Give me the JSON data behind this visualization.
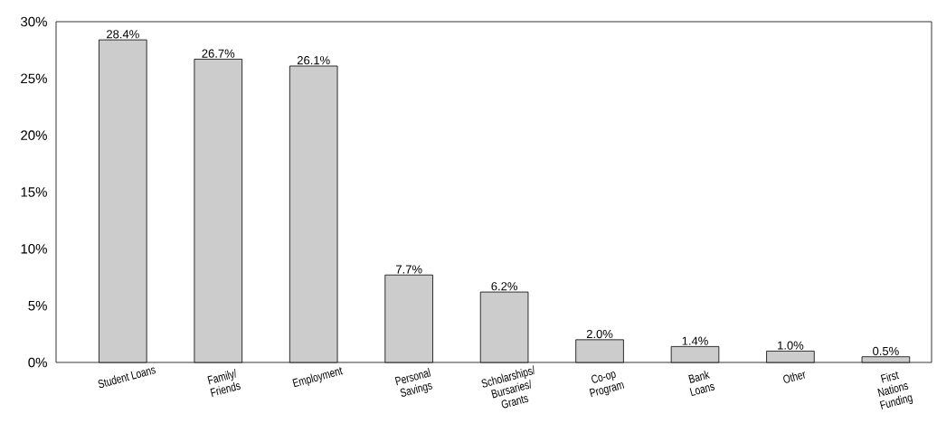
{
  "chart_data": {
    "type": "bar",
    "categories": [
      "Student Loans",
      "Family/\nFriends",
      "Employment",
      "Personal\nSavings",
      "Scholarships/\nBursaries/\nGrants",
      "Co-op\nProgram",
      "Bank\nLoans",
      "Other",
      "First\nNations\nFunding"
    ],
    "values": [
      28.4,
      26.7,
      26.1,
      7.7,
      6.2,
      2.0,
      1.4,
      1.0,
      0.5
    ],
    "value_labels": [
      "28.4%",
      "26.7%",
      "26.1%",
      "7.7%",
      "6.2%",
      "2.0%",
      "1.4%",
      "1.0%",
      "0.5%"
    ],
    "color": "#cccccc",
    "ylim": [
      0,
      30
    ],
    "yticks": [
      {
        "value": 0,
        "label": "0%"
      },
      {
        "value": 5,
        "label": "5%"
      },
      {
        "value": 10,
        "label": "10%"
      },
      {
        "value": 15,
        "label": "15%"
      },
      {
        "value": 20,
        "label": "20%"
      },
      {
        "value": 25,
        "label": "25%"
      },
      {
        "value": 30,
        "label": "30%"
      }
    ]
  }
}
